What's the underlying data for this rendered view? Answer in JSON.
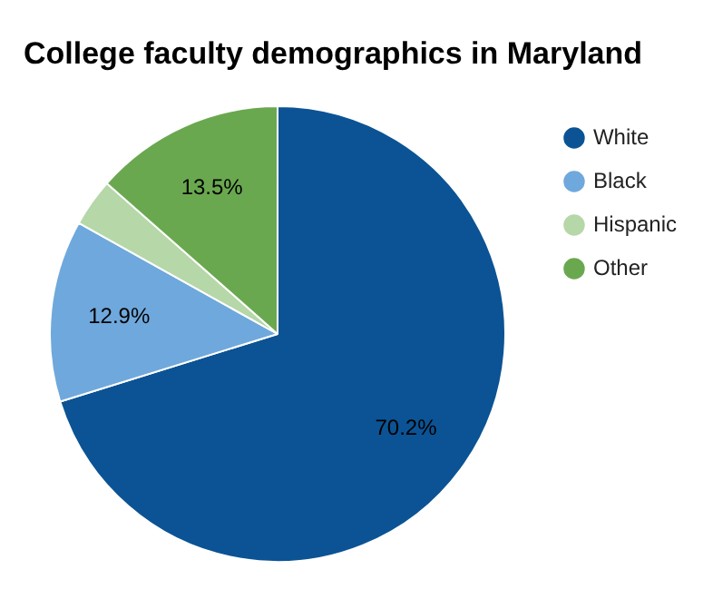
{
  "chart_data": {
    "type": "pie",
    "title": "College faculty demographics in Maryland",
    "categories": [
      "White",
      "Black",
      "Hispanic",
      "Other"
    ],
    "values": [
      70.2,
      12.9,
      3.4,
      13.5
    ],
    "value_labels": [
      "70.2%",
      "12.9%",
      null,
      "13.5%"
    ],
    "colors": [
      "#0b5394",
      "#6fa8dc",
      "#b6d7a8",
      "#6aa84f"
    ],
    "legend": "top right"
  }
}
